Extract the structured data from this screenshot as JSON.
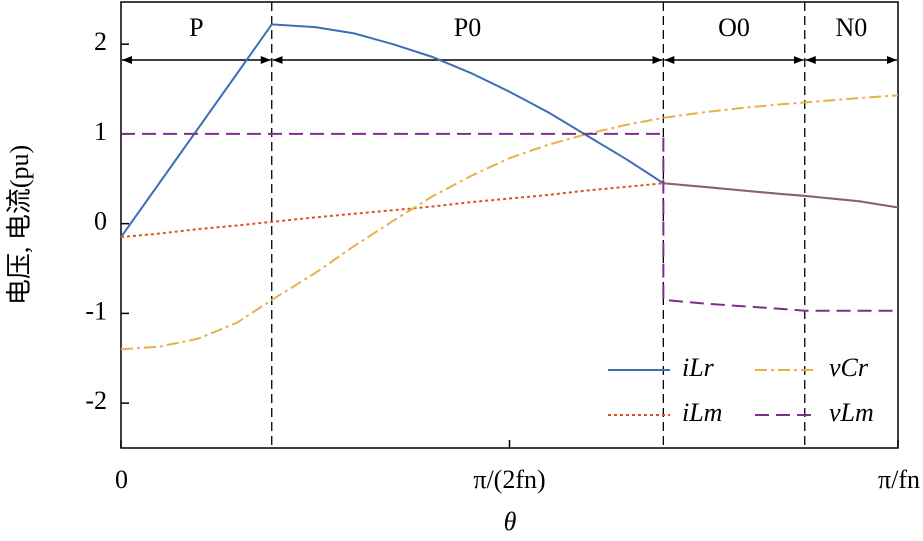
{
  "chart_data": {
    "type": "line",
    "xlabel": "θ",
    "ylabel": "电压, 电流(pu)",
    "x": [
      0,
      0.05,
      0.1,
      0.15,
      0.194,
      0.25,
      0.3,
      0.35,
      0.4,
      0.45,
      0.5,
      0.55,
      0.6,
      0.65,
      0.698,
      0.698,
      0.75,
      0.8,
      0.85,
      0.88,
      0.95,
      1
    ],
    "xlim": [
      0,
      1
    ],
    "xticks": [
      0,
      {
        "value": 0.5,
        "label": "π/(2fn)"
      },
      {
        "value": 1,
        "label": "π/fn"
      }
    ],
    "ylim": [
      -2.5,
      2.47
    ],
    "yticks": [
      -2,
      -1,
      0,
      1,
      2
    ],
    "regions": [
      {
        "label": "P",
        "start": 0,
        "end": 0.194
      },
      {
        "label": "P0",
        "start": 0.194,
        "end": 0.698
      },
      {
        "label": "O0",
        "start": 0.698,
        "end": 0.88
      },
      {
        "label": "N0",
        "start": 0.88,
        "end": 1
      }
    ],
    "series": [
      {
        "name": "iLr",
        "color": "#3d6fb6",
        "linestyle": "solid",
        "values": [
          -0.15,
          0.46,
          1.07,
          1.68,
          2.22,
          2.19,
          2.12,
          2.0,
          1.86,
          1.68,
          1.47,
          1.24,
          0.98,
          0.72,
          0.45,
          0.45,
          0.41,
          0.37,
          0.33,
          0.31,
          0.25,
          0.18
        ]
      },
      {
        "name": "iLm",
        "color": "#d9541e",
        "linestyle": "dotted",
        "values": [
          -0.15,
          -0.11,
          -0.06,
          -0.02,
          0.02,
          0.07,
          0.11,
          0.15,
          0.19,
          0.24,
          0.28,
          0.32,
          0.37,
          0.41,
          0.45,
          0.45,
          0.41,
          0.37,
          0.33,
          0.31,
          0.25,
          0.18
        ]
      },
      {
        "name": "vCr",
        "color": "#e8b04a",
        "linestyle": "dashdot",
        "values": [
          -1.4,
          -1.37,
          -1.28,
          -1.1,
          -0.85,
          -0.55,
          -0.25,
          0.03,
          0.3,
          0.53,
          0.73,
          0.88,
          1.0,
          1.1,
          1.18,
          1.18,
          1.24,
          1.29,
          1.33,
          1.35,
          1.4,
          1.43
        ]
      },
      {
        "name": "vLm",
        "color": "#7e2f8e",
        "linestyle": "dashed",
        "values": [
          1,
          1,
          1,
          1,
          1,
          1,
          1,
          1,
          1,
          1,
          1,
          1,
          1,
          1,
          1,
          -0.85,
          -0.89,
          -0.92,
          -0.95,
          -0.97,
          -0.97,
          -0.97
        ]
      }
    ]
  }
}
